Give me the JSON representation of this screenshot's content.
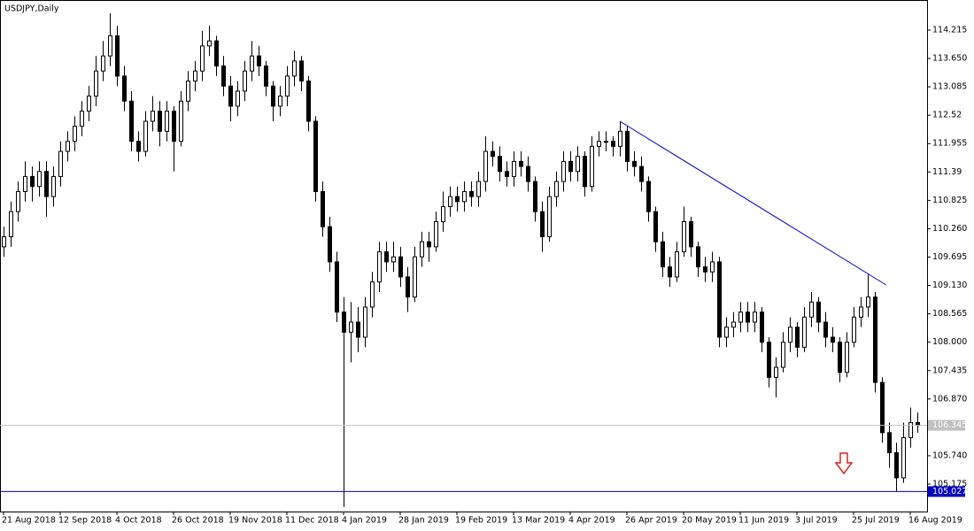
{
  "chart_data": {
    "type": "candlestick",
    "title": "USDJPY,Daily",
    "categories": [
      "21 Aug 2018",
      null,
      null,
      null,
      null,
      null,
      null,
      null,
      "12 Sep 2018",
      null,
      null,
      null,
      null,
      null,
      null,
      null,
      "4 Oct 2018",
      null,
      null,
      null,
      null,
      null,
      null,
      null,
      "26 Oct 2018",
      null,
      null,
      null,
      null,
      null,
      null,
      null,
      "19 Nov 2018",
      null,
      null,
      null,
      null,
      null,
      null,
      null,
      "11 Dec 2018",
      null,
      null,
      null,
      null,
      null,
      null,
      null,
      "4 Jan 2019",
      null,
      null,
      null,
      null,
      null,
      null,
      null,
      "28 Jan 2019",
      null,
      null,
      null,
      null,
      null,
      null,
      null,
      "19 Feb 2019",
      null,
      null,
      null,
      null,
      null,
      null,
      null,
      "13 Mar 2019",
      null,
      null,
      null,
      null,
      null,
      null,
      null,
      "4 Apr 2019",
      null,
      null,
      null,
      null,
      null,
      null,
      null,
      "26 Apr 2019",
      null,
      null,
      null,
      null,
      null,
      null,
      null,
      "20 May 2019",
      null,
      null,
      null,
      null,
      null,
      null,
      null,
      "11 Jun 2019",
      null,
      null,
      null,
      null,
      null,
      null,
      null,
      "3 Jul 2019",
      null,
      null,
      null,
      null,
      null,
      null,
      null,
      "25 Jul 2019",
      null,
      null,
      null,
      null,
      null,
      null,
      null,
      "16 Aug 2019",
      null
    ],
    "candles": [
      [
        109.9,
        110.3,
        109.7,
        110.1
      ],
      [
        110.1,
        110.8,
        109.9,
        110.6
      ],
      [
        110.6,
        111.2,
        110.4,
        111.0
      ],
      [
        111.0,
        111.6,
        110.8,
        111.3
      ],
      [
        111.3,
        111.5,
        110.8,
        111.1
      ],
      [
        111.1,
        111.6,
        110.9,
        111.4
      ],
      [
        111.4,
        111.6,
        110.5,
        110.9
      ],
      [
        110.9,
        111.5,
        110.7,
        111.3
      ],
      [
        111.3,
        112.0,
        111.1,
        111.8
      ],
      [
        111.8,
        112.2,
        111.6,
        112.0
      ],
      [
        112.0,
        112.5,
        111.8,
        112.3
      ],
      [
        112.3,
        112.8,
        112.1,
        112.6
      ],
      [
        112.6,
        113.1,
        112.4,
        112.9
      ],
      [
        112.9,
        113.7,
        112.7,
        113.4
      ],
      [
        113.4,
        114.0,
        113.2,
        113.7
      ],
      [
        113.7,
        114.55,
        113.5,
        114.1
      ],
      [
        114.1,
        114.3,
        113.1,
        113.3
      ],
      [
        113.3,
        113.5,
        112.6,
        112.8
      ],
      [
        112.8,
        113.0,
        111.8,
        112.0
      ],
      [
        112.0,
        112.2,
        111.6,
        111.8
      ],
      [
        111.8,
        112.6,
        111.7,
        112.4
      ],
      [
        112.4,
        112.9,
        112.2,
        112.6
      ],
      [
        112.6,
        112.8,
        111.9,
        112.2
      ],
      [
        112.2,
        112.8,
        112.0,
        112.6
      ],
      [
        112.6,
        112.7,
        111.4,
        112.0
      ],
      [
        112.0,
        113.0,
        111.9,
        112.8
      ],
      [
        112.8,
        113.4,
        112.6,
        113.2
      ],
      [
        113.2,
        113.6,
        113.0,
        113.4
      ],
      [
        113.4,
        114.2,
        113.2,
        113.9
      ],
      [
        113.9,
        114.3,
        113.7,
        114.0
      ],
      [
        114.0,
        114.1,
        113.3,
        113.5
      ],
      [
        113.5,
        113.7,
        112.9,
        113.1
      ],
      [
        113.1,
        113.3,
        112.4,
        112.7
      ],
      [
        112.7,
        113.2,
        112.5,
        113.0
      ],
      [
        113.0,
        113.6,
        112.8,
        113.4
      ],
      [
        113.4,
        114.0,
        113.2,
        113.7
      ],
      [
        113.7,
        113.9,
        113.3,
        113.5
      ],
      [
        113.5,
        113.6,
        112.9,
        113.1
      ],
      [
        113.1,
        113.2,
        112.4,
        112.7
      ],
      [
        112.7,
        113.1,
        112.5,
        112.9
      ],
      [
        112.9,
        113.5,
        112.7,
        113.3
      ],
      [
        113.3,
        113.8,
        113.1,
        113.6
      ],
      [
        113.6,
        113.7,
        113.0,
        113.2
      ],
      [
        113.2,
        113.3,
        112.2,
        112.4
      ],
      [
        112.4,
        112.5,
        110.8,
        111.0
      ],
      [
        111.0,
        111.2,
        110.1,
        110.3
      ],
      [
        110.3,
        110.5,
        109.4,
        109.6
      ],
      [
        109.6,
        109.8,
        108.4,
        108.6
      ],
      [
        108.6,
        108.9,
        104.72,
        108.2
      ],
      [
        108.2,
        108.8,
        107.6,
        108.4
      ],
      [
        108.4,
        108.7,
        107.8,
        108.1
      ],
      [
        108.1,
        108.9,
        107.9,
        108.7
      ],
      [
        108.7,
        109.4,
        108.5,
        109.2
      ],
      [
        109.2,
        110.0,
        109.0,
        109.8
      ],
      [
        109.8,
        110.0,
        109.4,
        109.6
      ],
      [
        109.6,
        110.0,
        109.4,
        109.7
      ],
      [
        109.7,
        109.9,
        109.1,
        109.3
      ],
      [
        109.3,
        109.5,
        108.6,
        108.9
      ],
      [
        108.9,
        109.9,
        108.8,
        109.7
      ],
      [
        109.7,
        110.2,
        109.5,
        110.0
      ],
      [
        110.0,
        110.2,
        109.6,
        109.9
      ],
      [
        109.9,
        110.6,
        109.8,
        110.4
      ],
      [
        110.4,
        111.0,
        110.2,
        110.7
      ],
      [
        110.7,
        111.1,
        110.5,
        110.9
      ],
      [
        110.9,
        111.1,
        110.6,
        110.8
      ],
      [
        110.8,
        111.2,
        110.6,
        111.0
      ],
      [
        111.0,
        111.2,
        110.7,
        110.9
      ],
      [
        110.9,
        111.4,
        110.7,
        111.2
      ],
      [
        111.2,
        112.1,
        111.0,
        111.8
      ],
      [
        111.8,
        112.0,
        111.5,
        111.7
      ],
      [
        111.7,
        111.9,
        111.2,
        111.4
      ],
      [
        111.4,
        111.6,
        111.1,
        111.3
      ],
      [
        111.3,
        111.8,
        111.1,
        111.6
      ],
      [
        111.6,
        111.8,
        111.3,
        111.5
      ],
      [
        111.5,
        111.7,
        111.0,
        111.2
      ],
      [
        111.2,
        111.3,
        110.4,
        110.6
      ],
      [
        110.6,
        110.8,
        109.8,
        110.1
      ],
      [
        110.1,
        111.1,
        110.0,
        110.9
      ],
      [
        110.9,
        111.4,
        110.7,
        111.2
      ],
      [
        111.2,
        111.8,
        111.0,
        111.6
      ],
      [
        111.6,
        111.8,
        111.2,
        111.4
      ],
      [
        111.4,
        111.9,
        111.2,
        111.7
      ],
      [
        111.7,
        111.8,
        110.9,
        111.1
      ],
      [
        111.1,
        112.1,
        111.0,
        111.9
      ],
      [
        111.9,
        112.2,
        111.7,
        112.0
      ],
      [
        112.0,
        112.2,
        111.8,
        112.0
      ],
      [
        112.0,
        112.1,
        111.7,
        111.9
      ],
      [
        111.9,
        112.4,
        111.7,
        112.2
      ],
      [
        112.2,
        112.3,
        111.4,
        111.6
      ],
      [
        111.6,
        111.8,
        111.3,
        111.5
      ],
      [
        111.5,
        111.7,
        111.0,
        111.2
      ],
      [
        111.2,
        111.3,
        110.4,
        110.6
      ],
      [
        110.6,
        110.7,
        109.8,
        110.0
      ],
      [
        110.0,
        110.2,
        109.3,
        109.5
      ],
      [
        109.5,
        109.7,
        109.1,
        109.3
      ],
      [
        109.3,
        110.0,
        109.2,
        109.8
      ],
      [
        109.8,
        110.7,
        109.7,
        110.4
      ],
      [
        110.4,
        110.5,
        109.7,
        109.9
      ],
      [
        109.9,
        110.0,
        109.3,
        109.5
      ],
      [
        109.5,
        109.7,
        109.2,
        109.4
      ],
      [
        109.4,
        109.8,
        109.2,
        109.6
      ],
      [
        109.6,
        109.7,
        107.9,
        108.1
      ],
      [
        108.1,
        108.5,
        107.9,
        108.3
      ],
      [
        108.3,
        108.6,
        108.1,
        108.4
      ],
      [
        108.4,
        108.8,
        108.2,
        108.6
      ],
      [
        108.6,
        108.8,
        108.2,
        108.4
      ],
      [
        108.4,
        108.8,
        108.2,
        108.6
      ],
      [
        108.6,
        108.7,
        107.8,
        108.0
      ],
      [
        108.0,
        108.1,
        107.1,
        107.3
      ],
      [
        107.3,
        107.7,
        106.9,
        107.5
      ],
      [
        107.5,
        108.2,
        107.4,
        108.0
      ],
      [
        108.0,
        108.5,
        107.8,
        108.3
      ],
      [
        108.3,
        108.4,
        107.7,
        107.9
      ],
      [
        107.9,
        108.7,
        107.8,
        108.5
      ],
      [
        108.5,
        109.0,
        108.3,
        108.8
      ],
      [
        108.8,
        108.9,
        108.2,
        108.4
      ],
      [
        108.4,
        108.6,
        107.9,
        108.1
      ],
      [
        108.1,
        108.3,
        107.8,
        108.0
      ],
      [
        108.0,
        108.1,
        107.2,
        107.4
      ],
      [
        107.4,
        108.2,
        107.3,
        108.0
      ],
      [
        108.0,
        108.7,
        107.9,
        108.5
      ],
      [
        108.5,
        108.9,
        108.3,
        108.7
      ],
      [
        108.7,
        109.35,
        108.5,
        108.9
      ],
      [
        108.9,
        109.0,
        107.0,
        107.2
      ],
      [
        107.2,
        107.3,
        106.0,
        106.2
      ],
      [
        106.2,
        106.4,
        105.5,
        105.8
      ],
      [
        105.8,
        106.0,
        105.03,
        105.3
      ],
      [
        105.3,
        106.4,
        105.2,
        106.1
      ],
      [
        106.1,
        106.7,
        105.9,
        106.4
      ],
      [
        106.4,
        106.6,
        106.2,
        106.345
      ]
    ],
    "ylim": [
      104.629,
      114.814
    ],
    "yticks": [
      114.215,
      {
        "value": 113.65,
        "label": "113.650"
      },
      113.085,
      112.52,
      111.955,
      111.39,
      110.825,
      {
        "value": 110.26,
        "label": "110.260"
      },
      109.695,
      {
        "value": 109.13,
        "label": "109.130"
      },
      108.565,
      {
        "value": 108.0,
        "label": "108.000"
      },
      107.435,
      {
        "value": 106.87,
        "label": "106.870"
      },
      {
        "value": 105.74,
        "label": "105.740"
      },
      105.175
    ],
    "price_lines": [
      {
        "value": 106.345,
        "color": "#c0c0c0"
      },
      {
        "value": 105.027,
        "color": "#0000c0"
      }
    ],
    "trendline": {
      "x": [
        87,
        124.6
      ],
      "y": [
        112.4,
        109.14
      ],
      "color": "#0000cc"
    },
    "grid": false
  }
}
